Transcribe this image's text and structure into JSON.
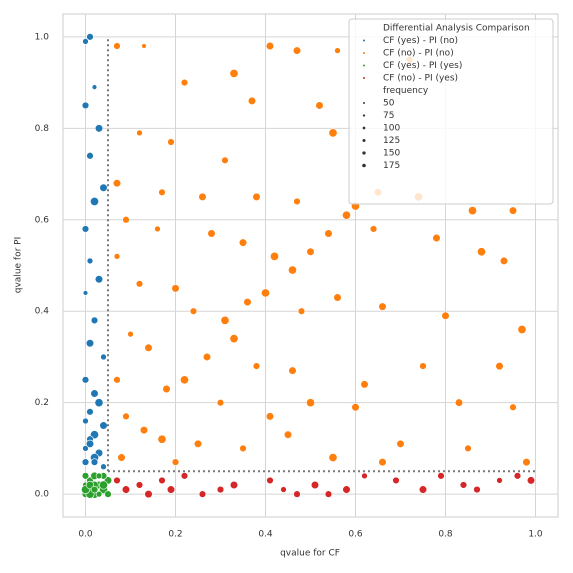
{
  "chart_data": {
    "type": "scatter",
    "xlabel": "qvalue for CF",
    "ylabel": "qvalue for PI",
    "xlim": [
      -0.05,
      1.05
    ],
    "ylim": [
      -0.05,
      1.05
    ],
    "xticks": [
      {
        "value": 0,
        "label": "0.0"
      },
      0.2,
      0.4,
      0.6,
      0.8,
      {
        "value": 1,
        "label": "1.0"
      }
    ],
    "yticks": [
      {
        "value": 0,
        "label": "0.0"
      },
      0.2,
      0.4,
      0.6,
      0.8,
      {
        "value": 1,
        "label": "1.0"
      }
    ],
    "grid": true,
    "threshold_lines": {
      "x": 0.05,
      "y": 0.05,
      "end": 1.0
    },
    "legend_title": "Differential Analysis Comparison",
    "legend_loc": "upper right",
    "size_title": "frequency",
    "size_legend": [
      50,
      75,
      100,
      125,
      150,
      175
    ],
    "series": [
      {
        "name": "CF (yes) - PI (no)",
        "color": "#1f77b4",
        "x": [
          0.0,
          0.01,
          0.02,
          0.0,
          0.03,
          0.01,
          0.04,
          0.02,
          0.0,
          0.01,
          0.03,
          0.0,
          0.02,
          0.01,
          0.04,
          0.0,
          0.02,
          0.03,
          0.01,
          0.0,
          0.04,
          0.02,
          0.01,
          0.0,
          0.03,
          0.02,
          0.0,
          0.04,
          0.01,
          0.02
        ],
        "values": [
          0.99,
          1.0,
          0.89,
          0.85,
          0.8,
          0.74,
          0.67,
          0.64,
          0.58,
          0.51,
          0.47,
          0.44,
          0.38,
          0.33,
          0.3,
          0.25,
          0.22,
          0.2,
          0.18,
          0.16,
          0.15,
          0.13,
          0.12,
          0.1,
          0.09,
          0.08,
          0.07,
          0.06,
          0.11,
          0.07
        ],
        "sizes": [
          75,
          100,
          50,
          100,
          125,
          100,
          125,
          150,
          100,
          75,
          125,
          50,
          100,
          125,
          75,
          100,
          125,
          150,
          100,
          75,
          125,
          150,
          100,
          75,
          125,
          150,
          100,
          75,
          125,
          100
        ]
      },
      {
        "name": "CF (no) - PI (no)",
        "color": "#ff7f0e",
        "x": [
          0.07,
          0.13,
          0.41,
          0.47,
          0.56,
          0.72,
          0.33,
          0.22,
          0.37,
          0.52,
          0.12,
          0.19,
          0.55,
          0.31,
          0.07,
          0.17,
          0.26,
          0.38,
          0.47,
          0.6,
          0.65,
          0.74,
          0.86,
          0.95,
          0.09,
          0.16,
          0.28,
          0.35,
          0.42,
          0.46,
          0.5,
          0.54,
          0.58,
          0.64,
          0.78,
          0.88,
          0.93,
          0.07,
          0.12,
          0.2,
          0.24,
          0.31,
          0.36,
          0.4,
          0.48,
          0.56,
          0.66,
          0.8,
          0.97,
          0.1,
          0.14,
          0.27,
          0.33,
          0.38,
          0.46,
          0.62,
          0.75,
          0.92,
          0.07,
          0.18,
          0.22,
          0.3,
          0.41,
          0.5,
          0.6,
          0.83,
          0.95,
          0.09,
          0.13,
          0.17,
          0.25,
          0.35,
          0.45,
          0.55,
          0.7,
          0.85,
          0.98,
          0.08,
          0.2,
          0.66
        ],
        "values": [
          0.98,
          0.98,
          0.98,
          0.97,
          0.97,
          0.95,
          0.92,
          0.9,
          0.86,
          0.85,
          0.79,
          0.77,
          0.79,
          0.73,
          0.68,
          0.66,
          0.65,
          0.65,
          0.64,
          0.63,
          0.66,
          0.65,
          0.62,
          0.62,
          0.6,
          0.58,
          0.57,
          0.55,
          0.52,
          0.49,
          0.53,
          0.57,
          0.61,
          0.58,
          0.56,
          0.53,
          0.51,
          0.52,
          0.46,
          0.45,
          0.4,
          0.38,
          0.42,
          0.44,
          0.4,
          0.43,
          0.41,
          0.39,
          0.36,
          0.35,
          0.32,
          0.3,
          0.34,
          0.28,
          0.27,
          0.24,
          0.28,
          0.28,
          0.25,
          0.23,
          0.25,
          0.2,
          0.17,
          0.2,
          0.19,
          0.2,
          0.19,
          0.17,
          0.14,
          0.12,
          0.11,
          0.1,
          0.13,
          0.08,
          0.11,
          0.1,
          0.07,
          0.08,
          0.07,
          0.07
        ],
        "sizes": [
          100,
          50,
          125,
          125,
          75,
          100,
          150,
          100,
          125,
          125,
          75,
          100,
          150,
          100,
          125,
          100,
          125,
          125,
          100,
          150,
          125,
          150,
          150,
          125,
          100,
          75,
          125,
          125,
          150,
          150,
          125,
          125,
          150,
          100,
          125,
          150,
          125,
          75,
          100,
          125,
          100,
          150,
          125,
          150,
          100,
          125,
          125,
          125,
          150,
          75,
          125,
          125,
          150,
          100,
          125,
          125,
          100,
          125,
          100,
          125,
          150,
          100,
          125,
          150,
          125,
          125,
          100,
          100,
          125,
          150,
          125,
          100,
          125,
          150,
          125,
          100,
          125,
          125,
          100,
          125
        ]
      },
      {
        "name": "CF (yes) - PI (yes)",
        "color": "#2ca02c",
        "x": [
          0.0,
          0.01,
          0.02,
          0.0,
          0.03,
          0.01,
          0.04,
          0.02,
          0.0,
          0.03,
          0.05,
          0.01,
          0.04,
          0.02,
          0.0,
          0.03,
          0.05,
          0.01,
          0.04,
          0.02
        ],
        "values": [
          0.0,
          0.01,
          0.0,
          0.02,
          0.02,
          0.03,
          0.01,
          0.04,
          0.04,
          0.0,
          0.03,
          0.0,
          0.04,
          0.02,
          0.01,
          0.04,
          0.0,
          0.02,
          0.02,
          0.01
        ],
        "sizes": [
          100,
          125,
          150,
          75,
          125,
          100,
          150,
          125,
          100,
          75,
          125,
          150,
          100,
          125,
          150,
          75,
          100,
          125,
          150,
          100
        ]
      },
      {
        "name": "CF (no)  - PI (yes)",
        "color": "#d62728",
        "x": [
          0.07,
          0.09,
          0.12,
          0.14,
          0.17,
          0.19,
          0.22,
          0.26,
          0.33,
          0.41,
          0.44,
          0.47,
          0.51,
          0.54,
          0.58,
          0.62,
          0.69,
          0.75,
          0.79,
          0.84,
          0.87,
          0.92,
          0.96,
          0.99,
          0.3
        ],
        "values": [
          0.03,
          0.01,
          0.02,
          0.0,
          0.03,
          0.01,
          0.04,
          0.0,
          0.02,
          0.03,
          0.01,
          0.0,
          0.02,
          0.0,
          0.01,
          0.04,
          0.03,
          0.01,
          0.04,
          0.02,
          0.01,
          0.03,
          0.04,
          0.03,
          0.01
        ],
        "sizes": [
          100,
          125,
          100,
          125,
          100,
          125,
          100,
          100,
          125,
          100,
          75,
          100,
          125,
          100,
          125,
          75,
          100,
          125,
          100,
          100,
          100,
          75,
          100,
          125,
          100
        ]
      }
    ]
  }
}
